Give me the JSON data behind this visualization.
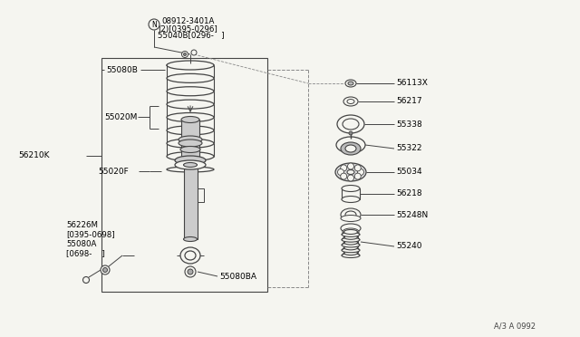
{
  "bg_color": "#f5f5f0",
  "line_color": "#444444",
  "fig_w": 6.4,
  "fig_h": 3.72,
  "dpi": 100,
  "title_ref": "A/3 A 0992",
  "label_top": "(N)08912-3401A\n  (2)[0395-0296]\n  55040B[0296-   ]",
  "label_55080B": "55080B",
  "label_55020M": "55020M",
  "label_55020F": "55020F",
  "label_56210K": "56210K",
  "label_56226M": "56226M\n[0395-0698]\n55080A\n[0698-    ]",
  "label_55080BA": "55080BA",
  "label_56113X": "56113X",
  "label_56217": "56217",
  "label_55338": "55338",
  "label_55322": "55322",
  "label_55034": "55034",
  "label_56218": "56218",
  "label_55248N": "55248N",
  "label_55240": "55240"
}
